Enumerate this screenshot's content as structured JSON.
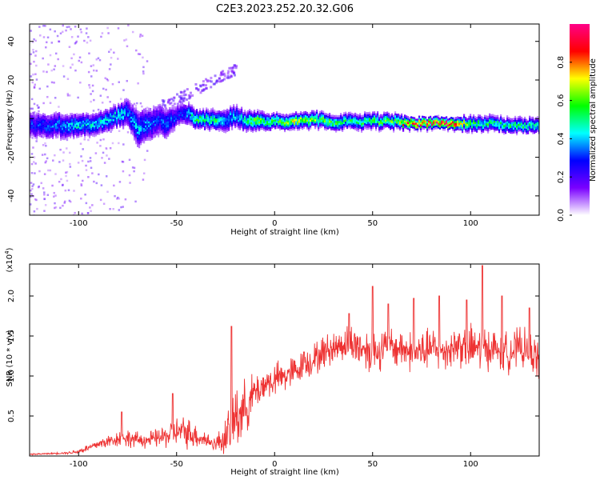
{
  "figure": {
    "title": "C2E3.2023.252.20.32.G06"
  },
  "chart_data": [
    {
      "type": "heatmap",
      "title": "C2E3.2023.252.20.32.G06",
      "xlabel": "Height of straight line (km)",
      "ylabel": "Frequency (Hz)",
      "xlim": [
        -125,
        135
      ],
      "ylim": [
        -50,
        49
      ],
      "x_ticks": [
        -100,
        -50,
        0,
        50,
        100
      ],
      "y_ticks": [
        -40,
        -20,
        0,
        20,
        40
      ],
      "colorbar": {
        "label": "Normalized spectral amplitude",
        "range": [
          0,
          1
        ],
        "ticks": [
          "0.0",
          "0.2",
          "0.4",
          "0.6",
          "0.8"
        ],
        "colormap": [
          "#ffffff",
          "#7a00ff",
          "#0000ff",
          "#00ffff",
          "#00ff00",
          "#ffff00",
          "#ff0000",
          "#ff0088"
        ]
      },
      "ridge": {
        "x": [
          -120,
          -110,
          -100,
          -90,
          -80,
          -75,
          -70,
          -65,
          -60,
          -55,
          -50,
          -45,
          -40,
          -35,
          -30,
          -25,
          -20,
          -15,
          -10,
          0,
          10,
          20,
          30,
          40,
          50,
          60,
          70,
          80,
          90,
          100,
          110,
          120,
          135
        ],
        "frequency_hz": [
          -3,
          -3,
          -3,
          -2,
          2,
          4,
          -5,
          -3,
          0,
          -2,
          2,
          3,
          0,
          0,
          0,
          0,
          2,
          -1,
          -1,
          -1,
          -1,
          0,
          -1,
          -1,
          -1,
          -1,
          -2,
          -2,
          -2,
          -2,
          -2,
          -3,
          -3
        ],
        "amplitude": [
          0.3,
          0.35,
          0.45,
          0.4,
          0.45,
          0.35,
          0.4,
          0.35,
          0.3,
          0.35,
          0.3,
          0.35,
          0.55,
          0.5,
          0.55,
          0.4,
          0.4,
          0.5,
          0.6,
          0.55,
          0.65,
          0.6,
          0.55,
          0.5,
          0.55,
          0.6,
          0.85,
          0.9,
          0.9,
          0.55,
          0.5,
          0.5,
          0.5
        ],
        "spread_hz": [
          7,
          7,
          6,
          6,
          6,
          8,
          10,
          9,
          9,
          8,
          6,
          6,
          5,
          5,
          5,
          6,
          6,
          5,
          5,
          4,
          4,
          4,
          4,
          4,
          4,
          4,
          3,
          3,
          3,
          4,
          4,
          4,
          4
        ]
      }
    },
    {
      "type": "line",
      "xlabel": "Height of straight line (km)",
      "ylabel": "SNR (10 * v/v)",
      "y_multiplier": "(x10",
      "y_multiplier_exp": "4",
      "y_multiplier_close": ")",
      "xlim": [
        -125,
        135
      ],
      "ylim": [
        0,
        2.4
      ],
      "x_ticks": [
        -100,
        -50,
        0,
        50,
        100
      ],
      "y_ticks": [
        0.5,
        1.0,
        1.5,
        2.0
      ],
      "y_tick_labels": [
        "0.5",
        "1.0",
        "1.5",
        "2.0"
      ],
      "series": [
        {
          "color": "#ee3333",
          "x": [
            -125,
            -115,
            -105,
            -100,
            -95,
            -90,
            -85,
            -80,
            -75,
            -70,
            -65,
            -60,
            -55,
            -50,
            -45,
            -40,
            -35,
            -30,
            -25,
            -22,
            -20,
            -15,
            -10,
            -5,
            0,
            5,
            10,
            15,
            20,
            25,
            30,
            35,
            40,
            45,
            50,
            55,
            60,
            65,
            70,
            75,
            80,
            85,
            90,
            95,
            100,
            105,
            110,
            115,
            120,
            125,
            130,
            135
          ],
          "y": [
            0.02,
            0.03,
            0.04,
            0.06,
            0.1,
            0.15,
            0.18,
            0.22,
            0.22,
            0.2,
            0.2,
            0.22,
            0.25,
            0.3,
            0.3,
            0.25,
            0.2,
            0.15,
            0.25,
            0.35,
            0.5,
            0.6,
            0.8,
            0.9,
            0.95,
            1.0,
            1.05,
            1.15,
            1.2,
            1.3,
            1.35,
            1.4,
            1.4,
            1.35,
            1.3,
            1.35,
            1.35,
            1.35,
            1.3,
            1.3,
            1.35,
            1.3,
            1.35,
            1.4,
            1.35,
            1.35,
            1.35,
            1.3,
            1.3,
            1.35,
            1.3,
            1.2
          ],
          "noise": [
            0.01,
            0.01,
            0.02,
            0.04,
            0.06,
            0.08,
            0.1,
            0.12,
            0.14,
            0.12,
            0.12,
            0.14,
            0.18,
            0.22,
            0.24,
            0.18,
            0.14,
            0.1,
            0.3,
            0.45,
            0.55,
            0.4,
            0.3,
            0.25,
            0.25,
            0.25,
            0.25,
            0.2,
            0.25,
            0.25,
            0.25,
            0.25,
            0.3,
            0.3,
            0.35,
            0.3,
            0.3,
            0.3,
            0.3,
            0.3,
            0.3,
            0.3,
            0.3,
            0.35,
            0.35,
            0.35,
            0.3,
            0.3,
            0.3,
            0.3,
            0.3,
            0.3
          ],
          "peaks": [
            {
              "x": -78,
              "y": 0.55
            },
            {
              "x": -52,
              "y": 0.78
            },
            {
              "x": -22,
              "y": 1.62
            },
            {
              "x": 15,
              "y": 1.3
            },
            {
              "x": 38,
              "y": 1.78
            },
            {
              "x": 50,
              "y": 2.12
            },
            {
              "x": 58,
              "y": 1.9
            },
            {
              "x": 71,
              "y": 1.97
            },
            {
              "x": 84,
              "y": 2.0
            },
            {
              "x": 98,
              "y": 1.95
            },
            {
              "x": 106,
              "y": 2.38
            },
            {
              "x": 116,
              "y": 2.0
            },
            {
              "x": 130,
              "y": 1.85
            }
          ]
        }
      ]
    }
  ]
}
